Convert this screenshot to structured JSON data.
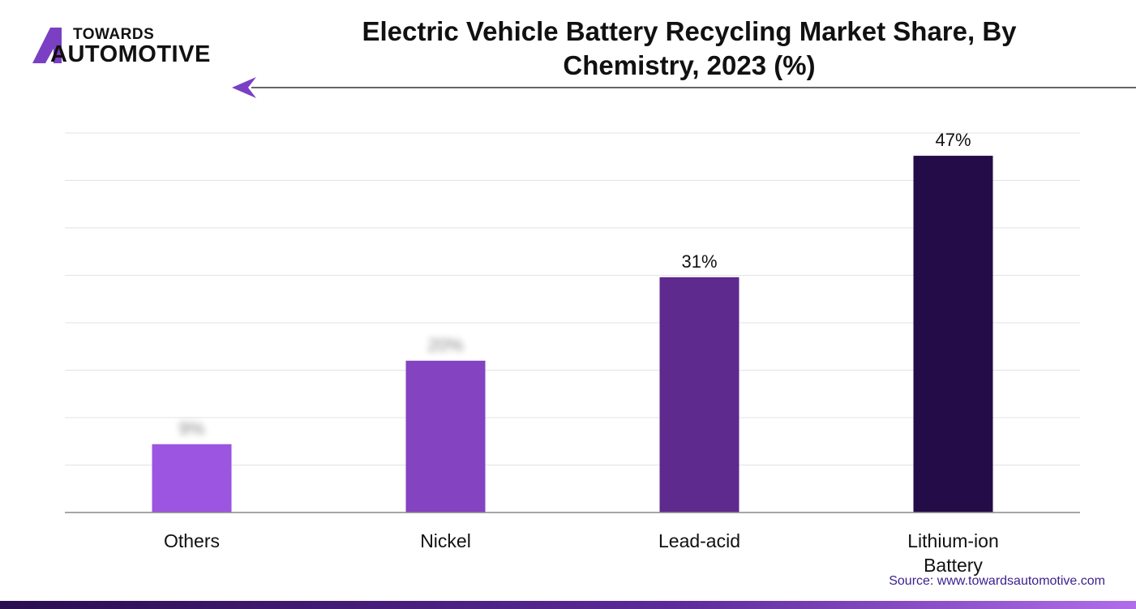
{
  "logo": {
    "top": "TOWARDS",
    "bottom": "AUTOMOTIVE"
  },
  "chart_data": {
    "type": "bar",
    "title": "Electric Vehicle Battery Recycling Market Share, By Chemistry, 2023 (%)",
    "categories": [
      "Others",
      "Nickel",
      "Lead-acid",
      "Lithium-ion Battery"
    ],
    "values": [
      9,
      20,
      31,
      47
    ],
    "value_labels": [
      "9%",
      "20%",
      "31%",
      "47%"
    ],
    "colors": [
      "#9b55e0",
      "#8443c0",
      "#5e2a8e",
      "#230c47"
    ],
    "ylim": [
      0,
      50
    ],
    "yticks": [
      0,
      6.25,
      12.5,
      18.75,
      25,
      31.25,
      37.5,
      43.75,
      50
    ],
    "grid": true,
    "source": "Source: www.towardsautomotive.com"
  }
}
